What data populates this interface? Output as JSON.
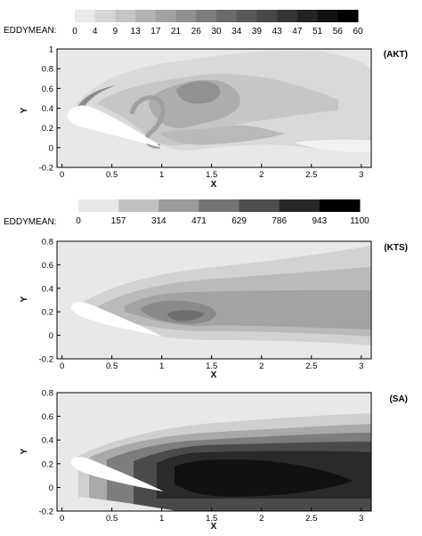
{
  "chart_data": [
    {
      "type": "heatmap",
      "tag": "(AKT)",
      "colorbar": {
        "title": "EDDYMEAN:",
        "ticks": [
          "0",
          "4",
          "9",
          "13",
          "17",
          "21",
          "26",
          "30",
          "34",
          "39",
          "43",
          "47",
          "51",
          "56",
          "60"
        ],
        "range": [
          0,
          60
        ]
      },
      "xlabel": "X",
      "ylabel": "Y",
      "xlim": [
        -0.05,
        3.1
      ],
      "ylim": [
        -0.2,
        1.0
      ],
      "xticks": [
        "0",
        "0.5",
        "1",
        "1.5",
        "2",
        "2.5",
        "3"
      ],
      "yticks": [
        "-0.2",
        "0",
        "0.2",
        "0.4",
        "0.6",
        "0.8",
        "1"
      ]
    },
    {
      "type": "heatmap",
      "tag": "(KTS)",
      "colorbar": {
        "title": "EDDYMEAN:",
        "ticks": [
          "0",
          "157",
          "314",
          "471",
          "629",
          "786",
          "943",
          "1100"
        ],
        "range": [
          0,
          1100
        ]
      },
      "xlabel": "X",
      "ylabel": "Y",
      "xlim": [
        -0.05,
        3.1
      ],
      "ylim": [
        -0.2,
        0.8
      ],
      "xticks": [
        "0",
        "0.5",
        "1",
        "1.5",
        "2",
        "2.5",
        "3"
      ],
      "yticks": [
        "-0.2",
        "0",
        "0.2",
        "0.4",
        "0.6",
        "0.8"
      ]
    },
    {
      "type": "heatmap",
      "tag": "(SA)",
      "xlabel": "X",
      "ylabel": "Y",
      "xlim": [
        -0.05,
        3.1
      ],
      "ylim": [
        -0.2,
        0.8
      ],
      "xticks": [
        "0",
        "0.5",
        "1",
        "1.5",
        "2",
        "2.5",
        "3"
      ],
      "yticks": [
        "-0.2",
        "0",
        "0.2",
        "0.4",
        "0.6",
        "0.8"
      ]
    }
  ]
}
